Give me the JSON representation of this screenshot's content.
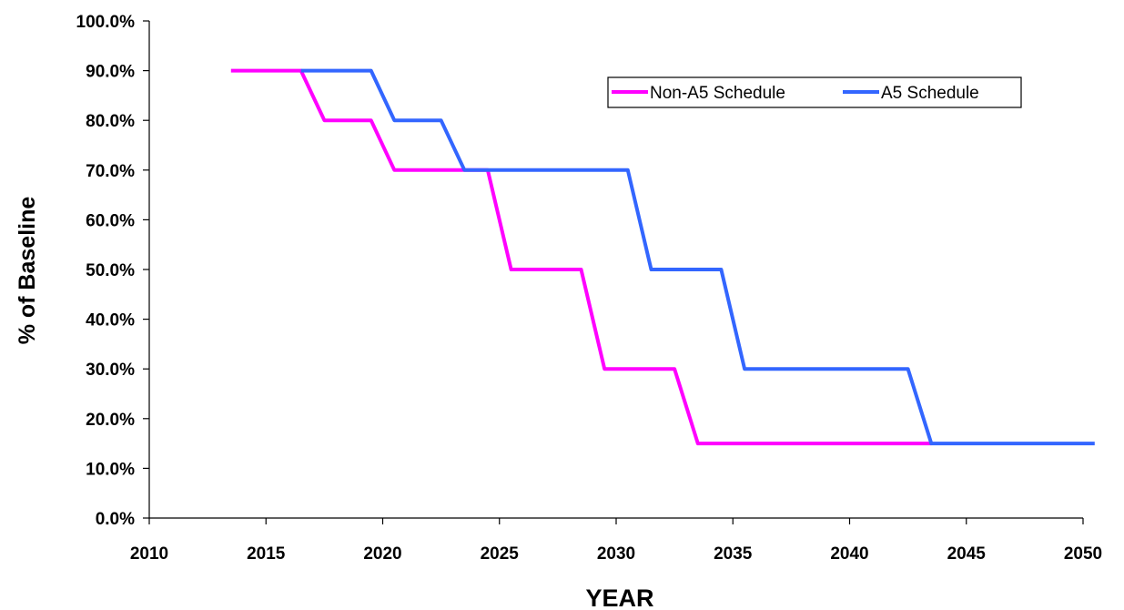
{
  "chart_data": {
    "type": "line",
    "title": "",
    "xlabel": "YEAR",
    "ylabel": "% of Baseline",
    "xlim": [
      2010,
      2050
    ],
    "ylim": [
      0,
      100
    ],
    "x_ticks": [
      2010,
      2015,
      2020,
      2025,
      2030,
      2035,
      2040,
      2045,
      2050
    ],
    "x_tick_labels": [
      "2010",
      "2015",
      "2020",
      "2025",
      "2030",
      "2035",
      "2040",
      "2045",
      "2050"
    ],
    "y_ticks": [
      0,
      10,
      20,
      30,
      40,
      50,
      60,
      70,
      80,
      90,
      100
    ],
    "y_tick_labels": [
      "0.0%",
      "10.0%",
      "20.0%",
      "30.0%",
      "40.0%",
      "50.0%",
      "60.0%",
      "70.0%",
      "80.0%",
      "90.0%",
      "100.0%"
    ],
    "grid": false,
    "legend_position": "top-right",
    "series": [
      {
        "name": "Non-A5 Schedule",
        "color": "#ff00ff",
        "points": [
          [
            2013.5,
            90
          ],
          [
            2016.5,
            90
          ],
          [
            2017.5,
            80
          ],
          [
            2019.5,
            80
          ],
          [
            2020.5,
            70
          ],
          [
            2024.5,
            70
          ],
          [
            2025.5,
            50
          ],
          [
            2028.5,
            50
          ],
          [
            2029.5,
            30
          ],
          [
            2032.5,
            30
          ],
          [
            2033.5,
            15
          ],
          [
            2043.5,
            15
          ]
        ]
      },
      {
        "name": "A5 Schedule",
        "color": "#3366ff",
        "points": [
          [
            2016.5,
            90
          ],
          [
            2019.5,
            90
          ],
          [
            2020.5,
            80
          ],
          [
            2022.5,
            80
          ],
          [
            2023.5,
            70
          ],
          [
            2030.5,
            70
          ],
          [
            2031.5,
            50
          ],
          [
            2034.5,
            50
          ],
          [
            2035.5,
            30
          ],
          [
            2042.5,
            30
          ],
          [
            2043.5,
            15
          ],
          [
            2050.5,
            15
          ]
        ]
      }
    ]
  }
}
